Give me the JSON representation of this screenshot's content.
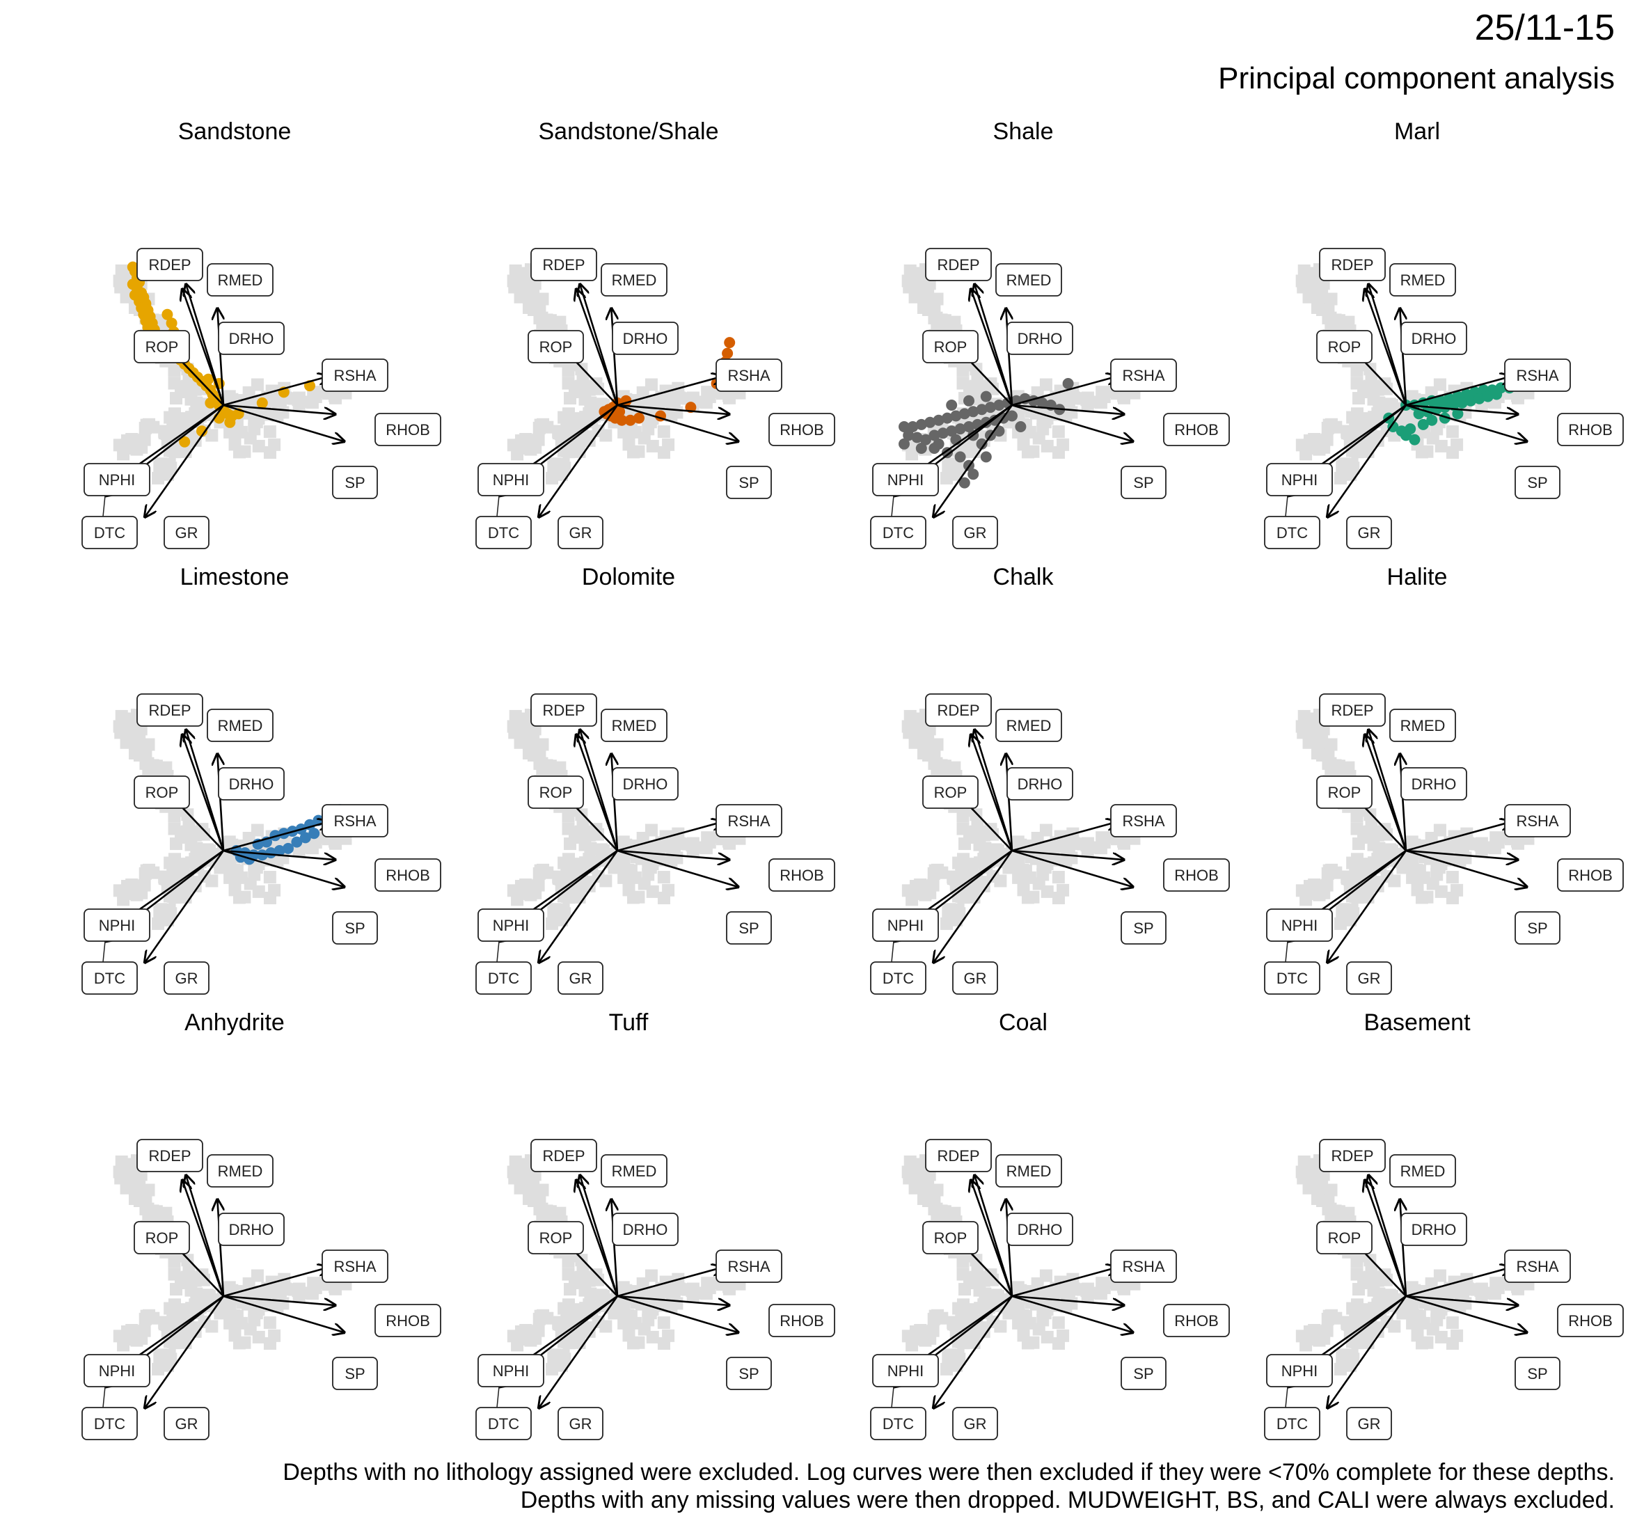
{
  "header": {
    "title": "25/11-15",
    "subtitle": "Principal component analysis"
  },
  "caption": {
    "line1": "Depths with no lithology assigned were excluded. Log curves were then excluded if they were <70% complete for these depths.",
    "line2": "Depths with any missing values were then dropped. MUDWEIGHT, BS, and CALI were always excluded."
  },
  "chart_data": {
    "type": "scatter",
    "description_kind": "PCA biplot small multiples",
    "panels": [
      "Sandstone",
      "Sandstone/Shale",
      "Shale",
      "Marl",
      "Limestone",
      "Dolomite",
      "Chalk",
      "Halite",
      "Anhydrite",
      "Tuff",
      "Coal",
      "Basement"
    ],
    "loadings": [
      {
        "name": "RMED",
        "x": -0.62,
        "y": 2.0
      },
      {
        "name": "RDEP",
        "x": -0.68,
        "y": 1.92
      },
      {
        "name": "DRHO",
        "x": -0.1,
        "y": 1.6
      },
      {
        "name": "ROP",
        "x": -1.05,
        "y": 1.1
      },
      {
        "name": "RSHA",
        "x": 1.75,
        "y": 0.48
      },
      {
        "name": "RHOB",
        "x": 1.85,
        "y": -0.15
      },
      {
        "name": "SP",
        "x": 2.0,
        "y": -0.6
      },
      {
        "name": "NPHI",
        "x": -2.0,
        "y": -1.4
      },
      {
        "name": "DTC",
        "x": -1.95,
        "y": -1.5
      },
      {
        "name": "GR",
        "x": -1.3,
        "y": -1.85
      }
    ],
    "colors": {
      "Sandstone": "#E6A500",
      "Sandstone/Shale": "#D55E00",
      "Shale": "#666666",
      "Marl": "#1B9E77",
      "Limestone": "#377EB8",
      "background": "#dedede",
      "arrow": "#000000"
    },
    "series": [
      {
        "name": "Sandstone",
        "points": [
          [
            -2.1,
            3.2
          ],
          [
            -2.05,
            3.1
          ],
          [
            -2.0,
            2.95
          ],
          [
            -1.95,
            2.85
          ],
          [
            -2.1,
            2.8
          ],
          [
            -2.0,
            2.7
          ],
          [
            -1.9,
            2.6
          ],
          [
            -2.05,
            2.55
          ],
          [
            -1.85,
            2.5
          ],
          [
            -1.95,
            2.4
          ],
          [
            -1.8,
            2.35
          ],
          [
            -1.9,
            2.25
          ],
          [
            -1.75,
            2.2
          ],
          [
            -1.85,
            2.1
          ],
          [
            -1.7,
            2.05
          ],
          [
            -1.8,
            1.95
          ],
          [
            -1.65,
            1.9
          ],
          [
            -1.75,
            1.8
          ],
          [
            -1.6,
            1.75
          ],
          [
            -1.7,
            1.65
          ],
          [
            -1.55,
            1.6
          ],
          [
            -1.5,
            1.5
          ],
          [
            -1.4,
            1.45
          ],
          [
            -1.3,
            1.35
          ],
          [
            -1.2,
            1.25
          ],
          [
            -1.1,
            1.15
          ],
          [
            -1.0,
            1.05
          ],
          [
            -0.9,
            0.95
          ],
          [
            -0.8,
            0.85
          ],
          [
            -0.7,
            0.75
          ],
          [
            -0.6,
            0.65
          ],
          [
            -0.5,
            0.55
          ],
          [
            -0.4,
            0.45
          ],
          [
            -0.3,
            0.35
          ],
          [
            -0.25,
            0.25
          ],
          [
            -0.2,
            0.15
          ],
          [
            -0.3,
            0.05
          ],
          [
            -0.1,
            0.0
          ],
          [
            0.0,
            -0.1
          ],
          [
            0.1,
            -0.2
          ],
          [
            0.2,
            -0.25
          ],
          [
            -0.1,
            -0.3
          ],
          [
            0.15,
            -0.4
          ],
          [
            -0.5,
            -0.6
          ],
          [
            -0.9,
            -0.85
          ],
          [
            0.9,
            0.05
          ],
          [
            1.4,
            0.3
          ],
          [
            2.0,
            0.45
          ],
          [
            -1.2,
            1.9
          ],
          [
            -1.3,
            2.1
          ],
          [
            -1.15,
            1.7
          ],
          [
            -0.35,
            0.6
          ],
          [
            -0.1,
            0.5
          ],
          [
            0.35,
            -0.2
          ]
        ]
      },
      {
        "name": "Sandstone/Shale",
        "points": [
          [
            0.0,
            0.05
          ],
          [
            -0.1,
            -0.05
          ],
          [
            -0.2,
            -0.1
          ],
          [
            -0.3,
            -0.15
          ],
          [
            -0.15,
            -0.25
          ],
          [
            -0.05,
            -0.3
          ],
          [
            0.1,
            -0.35
          ],
          [
            0.3,
            -0.35
          ],
          [
            0.5,
            -0.3
          ],
          [
            1.0,
            -0.25
          ],
          [
            1.7,
            -0.05
          ],
          [
            2.3,
            0.5
          ],
          [
            2.5,
            1.0
          ],
          [
            2.55,
            1.2
          ],
          [
            2.6,
            1.45
          ],
          [
            0.2,
            0.1
          ],
          [
            -0.25,
            -0.2
          ],
          [
            0.05,
            -0.15
          ]
        ]
      },
      {
        "name": "Shale",
        "points": [
          [
            -2.5,
            -0.5
          ],
          [
            -2.3,
            -0.5
          ],
          [
            -2.1,
            -0.45
          ],
          [
            -1.9,
            -0.4
          ],
          [
            -1.7,
            -0.35
          ],
          [
            -1.5,
            -0.3
          ],
          [
            -1.3,
            -0.25
          ],
          [
            -1.1,
            -0.2
          ],
          [
            -0.9,
            -0.15
          ],
          [
            -0.7,
            -0.1
          ],
          [
            -0.5,
            -0.05
          ],
          [
            -0.3,
            0.0
          ],
          [
            -0.1,
            0.05
          ],
          [
            0.1,
            0.1
          ],
          [
            0.3,
            0.15
          ],
          [
            0.5,
            0.1
          ],
          [
            0.7,
            0.05
          ],
          [
            0.9,
            0.0
          ],
          [
            1.1,
            -0.1
          ],
          [
            -2.4,
            -0.7
          ],
          [
            -2.2,
            -0.75
          ],
          [
            -2.0,
            -0.8
          ],
          [
            -1.8,
            -0.7
          ],
          [
            -1.6,
            -0.65
          ],
          [
            -1.4,
            -0.6
          ],
          [
            -1.2,
            -0.55
          ],
          [
            -1.0,
            -0.5
          ],
          [
            -0.8,
            -0.45
          ],
          [
            -0.6,
            -0.4
          ],
          [
            -0.4,
            -0.35
          ],
          [
            -0.2,
            -0.3
          ],
          [
            0.0,
            -0.25
          ],
          [
            -1.8,
            -1.0
          ],
          [
            -1.5,
            -1.1
          ],
          [
            -1.2,
            -1.2
          ],
          [
            -1.0,
            -1.4
          ],
          [
            -0.9,
            -1.6
          ],
          [
            -1.1,
            -1.8
          ],
          [
            -0.7,
            -0.9
          ],
          [
            -0.5,
            -0.7
          ],
          [
            -1.4,
            0.0
          ],
          [
            -1.0,
            0.1
          ],
          [
            -0.6,
            0.2
          ],
          [
            1.3,
            0.5
          ],
          [
            -2.5,
            -0.9
          ],
          [
            -2.1,
            -1.0
          ],
          [
            -1.7,
            -0.9
          ],
          [
            -1.3,
            -0.8
          ],
          [
            -0.9,
            -0.7
          ],
          [
            -0.3,
            -0.6
          ],
          [
            0.2,
            -0.5
          ],
          [
            -0.6,
            -1.2
          ]
        ]
      },
      {
        "name": "Marl",
        "points": [
          [
            0.0,
            0.0
          ],
          [
            0.2,
            0.0
          ],
          [
            0.4,
            0.05
          ],
          [
            0.6,
            0.1
          ],
          [
            0.8,
            0.1
          ],
          [
            1.0,
            0.15
          ],
          [
            1.2,
            0.2
          ],
          [
            1.4,
            0.25
          ],
          [
            1.6,
            0.3
          ],
          [
            1.8,
            0.35
          ],
          [
            2.0,
            0.35
          ],
          [
            2.2,
            0.4
          ],
          [
            2.4,
            0.4
          ],
          [
            2.55,
            0.45
          ],
          [
            0.3,
            -0.2
          ],
          [
            0.5,
            -0.15
          ],
          [
            0.7,
            -0.1
          ],
          [
            0.9,
            -0.05
          ],
          [
            1.1,
            0.0
          ],
          [
            1.3,
            0.05
          ],
          [
            1.5,
            0.1
          ],
          [
            1.7,
            0.15
          ],
          [
            1.9,
            0.2
          ],
          [
            2.1,
            0.25
          ],
          [
            -0.4,
            -0.3
          ],
          [
            -0.3,
            -0.5
          ],
          [
            -0.1,
            -0.6
          ],
          [
            0.1,
            -0.55
          ],
          [
            0.4,
            -0.45
          ],
          [
            0.6,
            -0.35
          ],
          [
            0.9,
            -0.3
          ],
          [
            1.2,
            -0.2
          ],
          [
            0.2,
            -0.8
          ],
          [
            0.0,
            -0.7
          ]
        ]
      },
      {
        "name": "Limestone",
        "points": [
          [
            0.3,
            0.0
          ],
          [
            0.5,
            -0.05
          ],
          [
            0.7,
            -0.1
          ],
          [
            0.9,
            -0.1
          ],
          [
            1.1,
            -0.05
          ],
          [
            1.3,
            0.0
          ],
          [
            1.5,
            0.05
          ],
          [
            1.2,
            0.35
          ],
          [
            1.4,
            0.4
          ],
          [
            1.6,
            0.45
          ],
          [
            1.8,
            0.5
          ],
          [
            2.0,
            0.6
          ],
          [
            2.2,
            0.7
          ],
          [
            2.4,
            0.8
          ],
          [
            2.6,
            0.9
          ],
          [
            2.7,
            0.95
          ],
          [
            1.0,
            0.2
          ],
          [
            0.8,
            0.15
          ],
          [
            1.7,
            0.2
          ],
          [
            1.9,
            0.3
          ],
          [
            2.1,
            0.4
          ],
          [
            0.6,
            -0.2
          ],
          [
            0.4,
            -0.15
          ]
        ]
      }
    ]
  }
}
